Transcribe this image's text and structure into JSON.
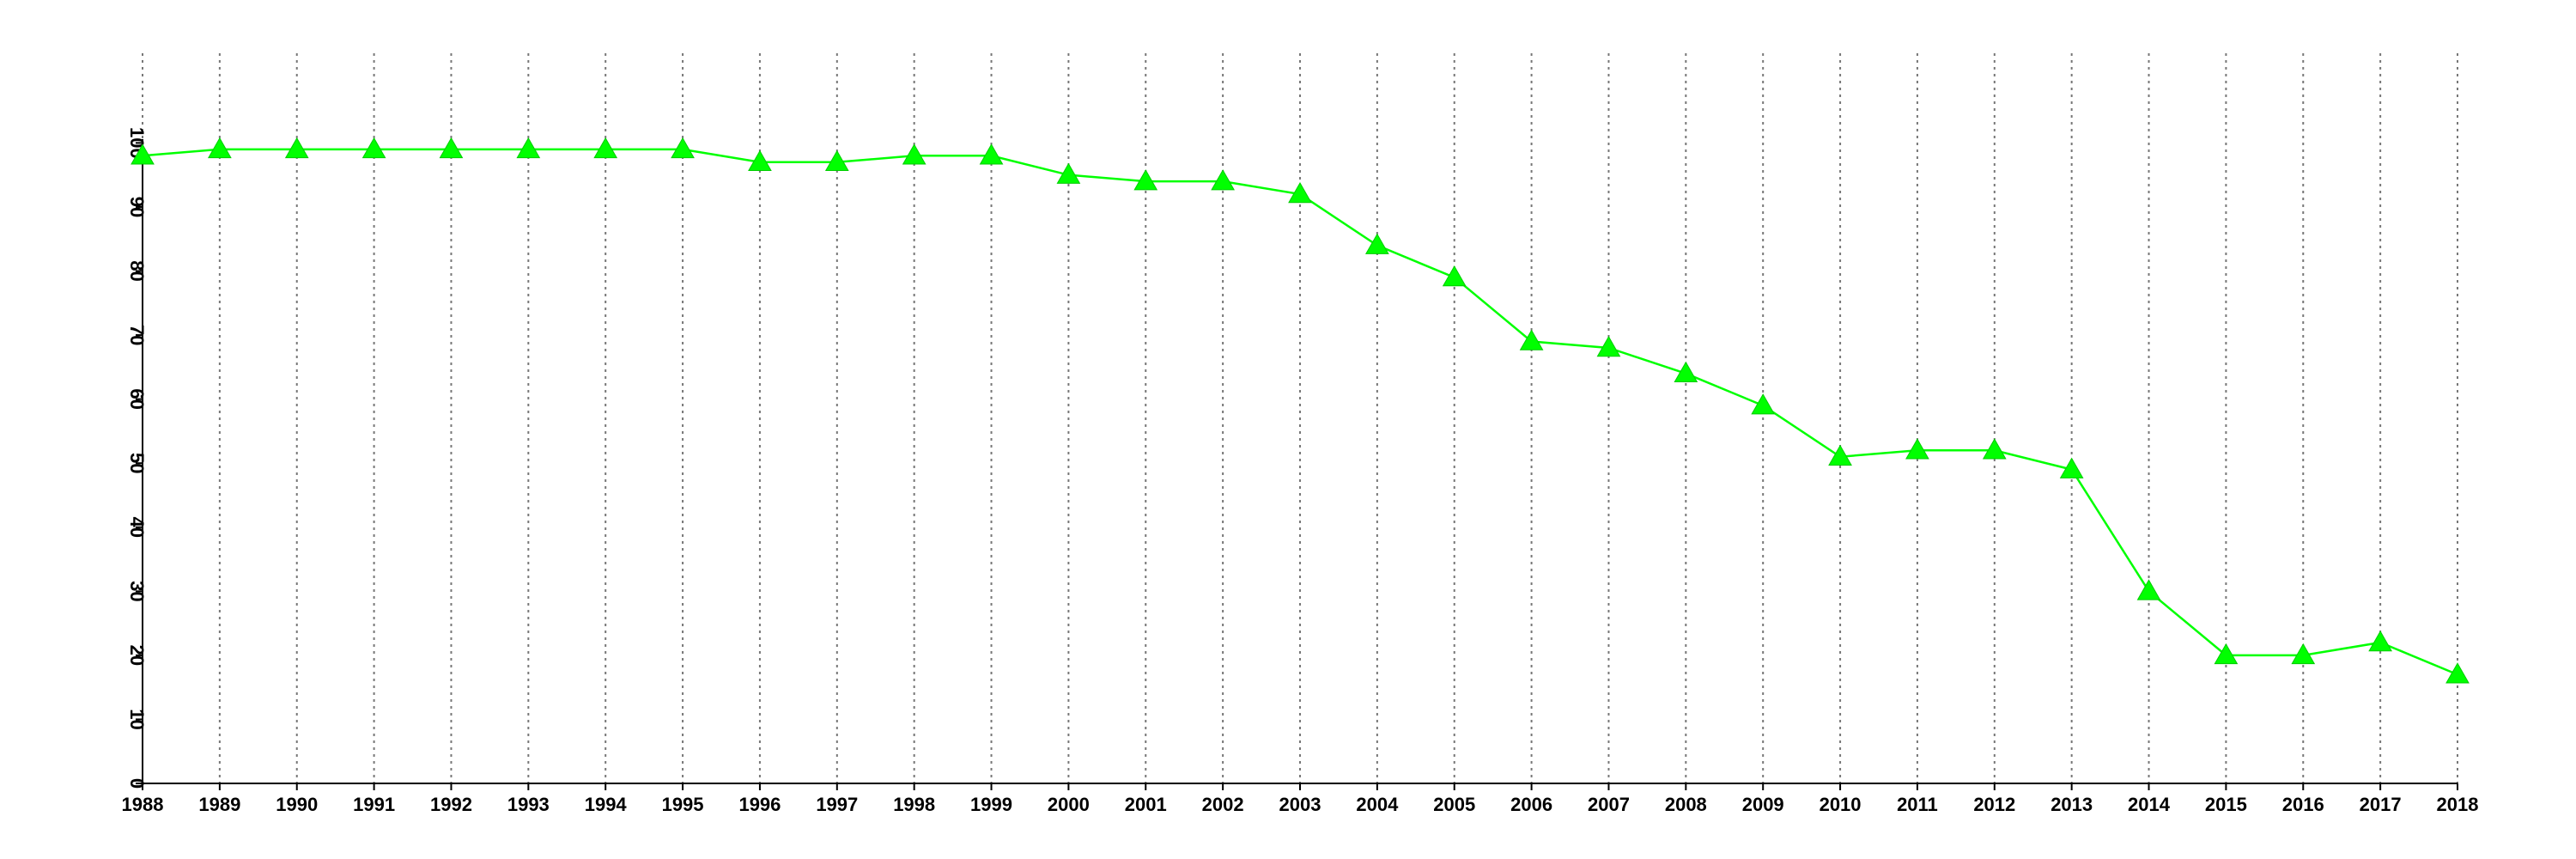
{
  "chart_data": {
    "type": "line",
    "x": [
      1988,
      1989,
      1990,
      1991,
      1992,
      1993,
      1994,
      1995,
      1996,
      1997,
      1998,
      1999,
      2000,
      2001,
      2002,
      2003,
      2004,
      2005,
      2006,
      2007,
      2008,
      2009,
      2010,
      2011,
      2012,
      2013,
      2014,
      2015,
      2016,
      2017,
      2018
    ],
    "values": [
      98,
      99,
      99,
      99,
      99,
      99,
      99,
      99,
      97,
      97,
      98,
      98,
      95,
      94,
      94,
      92,
      84,
      79,
      69,
      68,
      64,
      59,
      51,
      52,
      52,
      49,
      30,
      20,
      20,
      22,
      17
    ],
    "color": "#00ff00",
    "xlim": [
      1988,
      2018
    ],
    "xticks": [
      1988,
      1989,
      1990,
      1991,
      1992,
      1993,
      1994,
      1995,
      1996,
      1997,
      1998,
      1999,
      2000,
      2001,
      2002,
      2003,
      2004,
      2005,
      2006,
      2007,
      2008,
      2009,
      2010,
      2011,
      2012,
      2013,
      2014,
      2015,
      2016,
      2017,
      2018
    ],
    "ylim": [
      0,
      114
    ],
    "yticks": [
      0,
      10,
      20,
      30,
      40,
      50,
      60,
      70,
      80,
      90,
      100
    ],
    "grid": true,
    "marker": "triangle"
  }
}
